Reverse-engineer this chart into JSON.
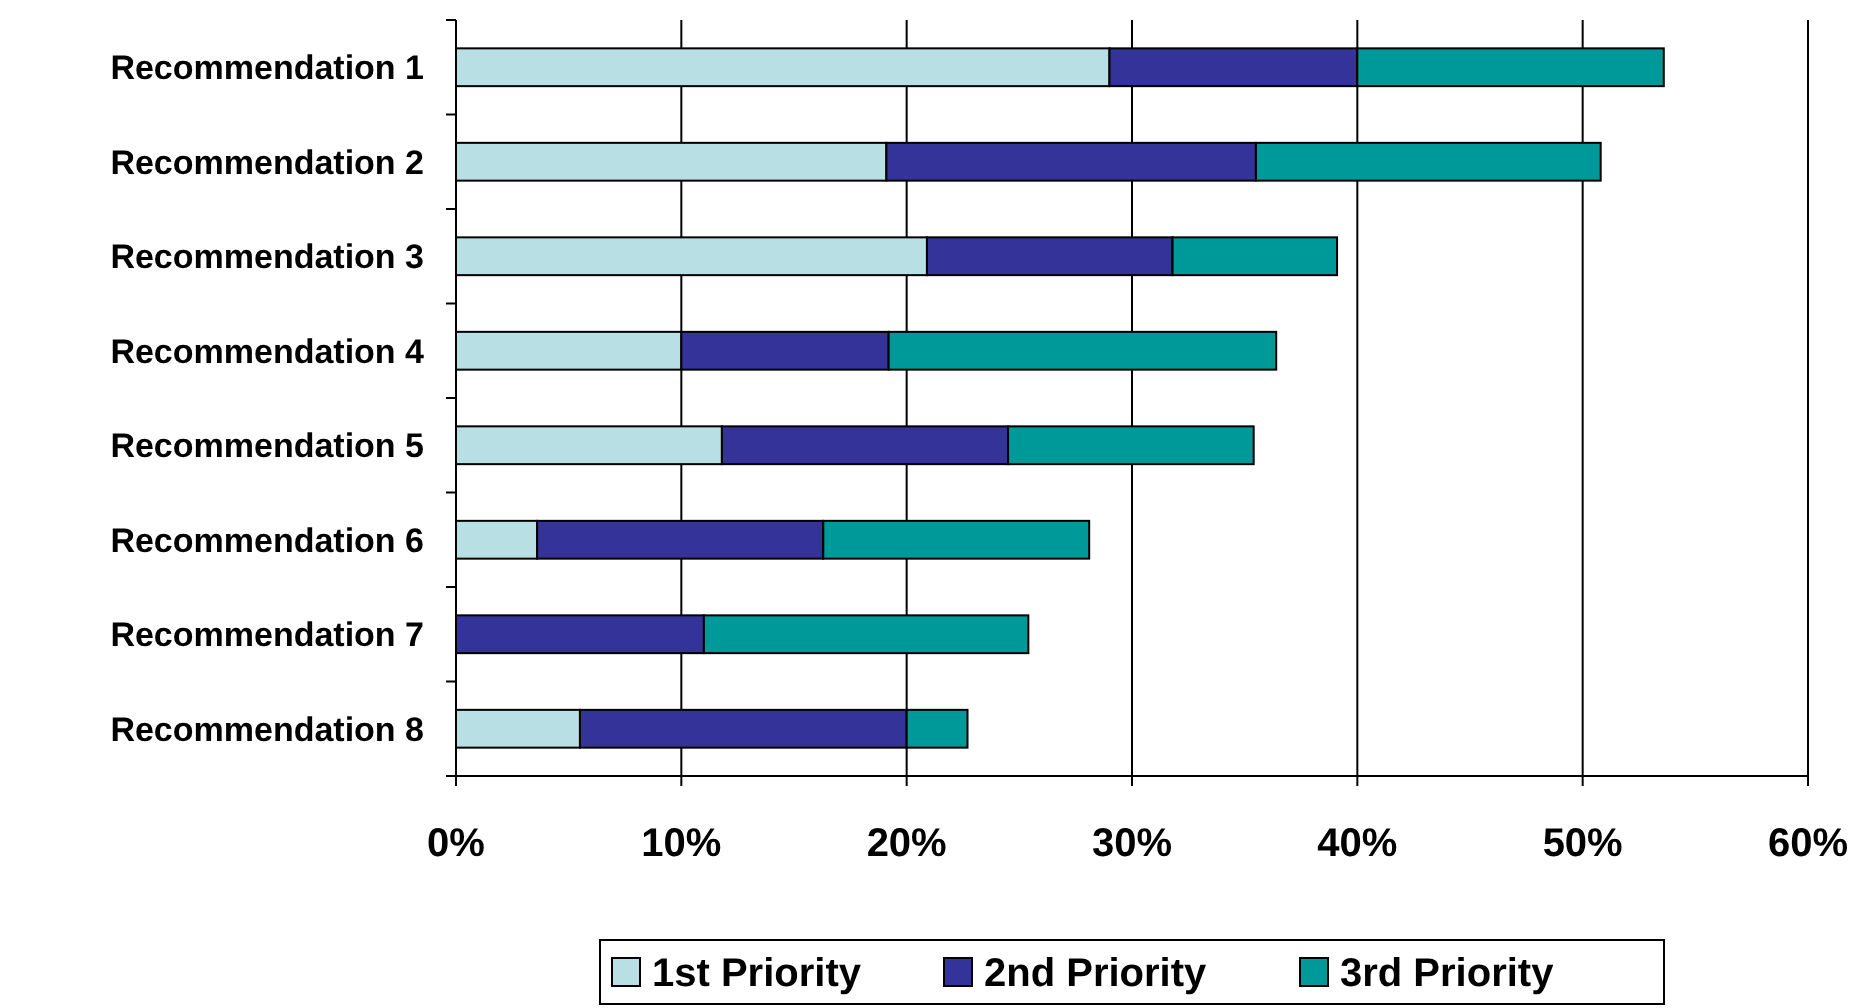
{
  "chart_data": {
    "type": "bar",
    "orientation": "horizontal",
    "stacked": true,
    "categories": [
      "Recommendation 1",
      "Recommendation 2",
      "Recommendation 3",
      "Recommendation 4",
      "Recommendation 5",
      "Recommendation 6",
      "Recommendation 7",
      "Recommendation 8"
    ],
    "series": [
      {
        "name": "1st Priority",
        "color": "#b8e0e4",
        "values": [
          29.0,
          19.1,
          20.9,
          10.0,
          11.8,
          3.6,
          0,
          5.5
        ]
      },
      {
        "name": "2nd Priority",
        "color": "#333399",
        "values": [
          11.0,
          16.4,
          10.9,
          9.2,
          12.7,
          12.7,
          11.0,
          14.5
        ]
      },
      {
        "name": "3rd Priority",
        "color": "#009999",
        "values": [
          13.6,
          15.3,
          7.3,
          17.2,
          10.9,
          11.8,
          14.4,
          2.7
        ]
      }
    ],
    "xlim": [
      0,
      60
    ],
    "xticks": [
      {
        "value": 0,
        "label": "0%"
      },
      {
        "value": 10,
        "label": "10%"
      },
      {
        "value": 20,
        "label": "20%"
      },
      {
        "value": 30,
        "label": "30%"
      },
      {
        "value": 40,
        "label": "40%"
      },
      {
        "value": 50,
        "label": "50%"
      },
      {
        "value": 60,
        "label": "60%"
      }
    ],
    "grid": "x",
    "legend": "bottom"
  }
}
